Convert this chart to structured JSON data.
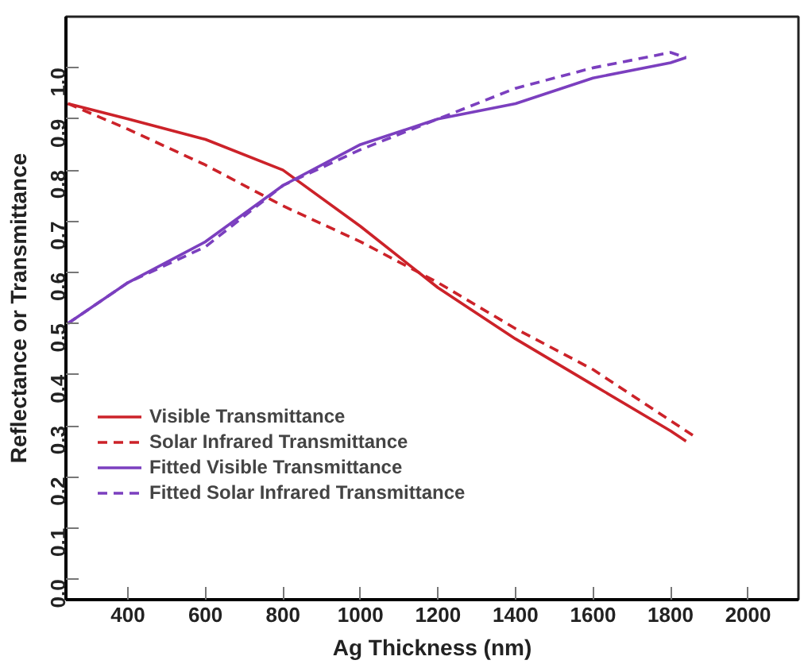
{
  "chart_data": {
    "type": "line",
    "xlabel": "Ag Thickness (nm)",
    "ylabel": "Reflectance or Transmittance",
    "x": [
      245,
      400,
      600,
      800,
      1000,
      1200,
      1400,
      1600,
      1800,
      1840
    ],
    "series": [
      {
        "name": "Visible Transmittance",
        "color": "#cc2229",
        "line_style": "solid",
        "values": [
          0.93,
          0.9,
          0.86,
          0.8,
          0.69,
          0.57,
          0.47,
          0.38,
          0.29,
          0.27
        ]
      },
      {
        "name": "Solar Infrared Transmittance",
        "color": "#cc2229",
        "line_style": "dashed",
        "x": [
          245,
          400,
          600,
          800,
          1000,
          1200,
          1400,
          1600,
          1800,
          1860
        ],
        "values": [
          0.93,
          0.88,
          0.81,
          0.73,
          0.66,
          0.58,
          0.49,
          0.41,
          0.31,
          0.28
        ]
      },
      {
        "name": "Fitted Visible Transmittance",
        "color": "#7b3fbf",
        "line_style": "solid",
        "values": [
          0.5,
          0.58,
          0.66,
          0.77,
          0.85,
          0.9,
          0.93,
          0.98,
          1.01,
          1.02
        ]
      },
      {
        "name": "Fitted Solar Infrared Transmittance",
        "color": "#7b3fbf",
        "line_style": "dashed",
        "values": [
          0.5,
          0.58,
          0.65,
          0.77,
          0.84,
          0.9,
          0.96,
          1.0,
          1.03,
          1.02
        ]
      }
    ],
    "xlim": [
      240,
      2130
    ],
    "xticks": [
      400,
      600,
      800,
      1000,
      1200,
      1400,
      1600,
      1800,
      2000
    ],
    "ylim": [
      -0.04,
      1.1
    ],
    "yticks": [
      {
        "value": 0,
        "label": "0.0"
      },
      0.1,
      0.2,
      0.3,
      0.4,
      0.5,
      0.6,
      0.7,
      0.8,
      0.9,
      {
        "value": 1,
        "label": "1.0"
      }
    ],
    "grid": false,
    "legend": "bottom left",
    "marker": "none"
  }
}
